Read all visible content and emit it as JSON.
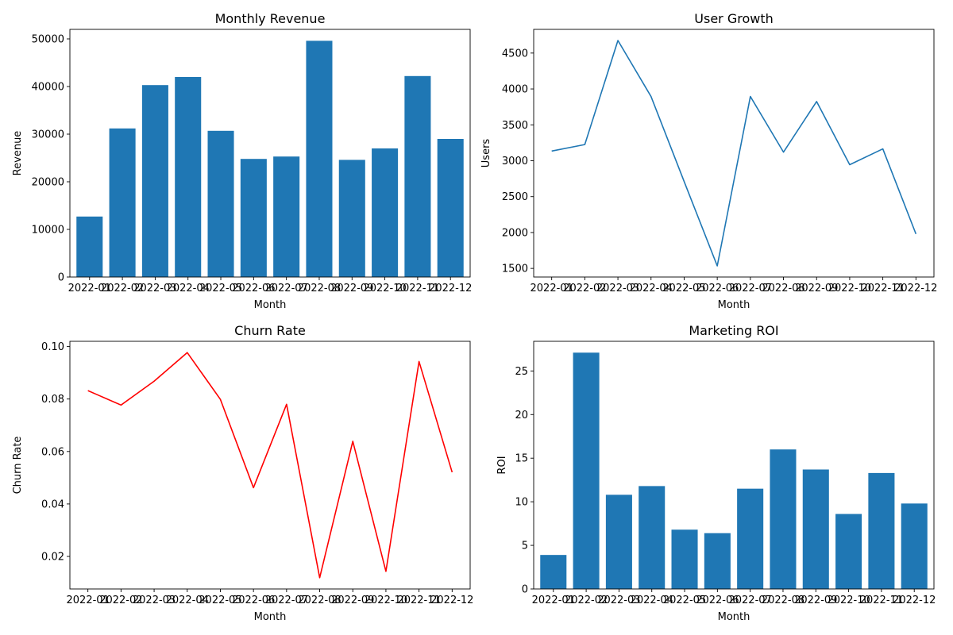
{
  "chart_data": [
    {
      "type": "bar",
      "title": "Monthly Revenue",
      "xlabel": "Month",
      "ylabel": "Revenue",
      "categories": [
        "2022-01",
        "2022-02",
        "2022-03",
        "2022-04",
        "2022-05",
        "2022-06",
        "2022-07",
        "2022-08",
        "2022-09",
        "2022-10",
        "2022-11",
        "2022-12"
      ],
      "values": [
        12700,
        31200,
        40300,
        42000,
        30700,
        24800,
        25300,
        49600,
        24600,
        27000,
        42200,
        29000
      ],
      "ylim": [
        0,
        52000
      ],
      "yticks": [
        0,
        10000,
        20000,
        30000,
        40000,
        50000
      ],
      "color": "#1f77b4",
      "grid": false
    },
    {
      "type": "line",
      "title": "User Growth",
      "xlabel": "Month",
      "ylabel": "Users",
      "categories": [
        "2022-01",
        "2022-02",
        "2022-03",
        "2022-04",
        "2022-05",
        "2022-06",
        "2022-07",
        "2022-08",
        "2022-09",
        "2022-10",
        "2022-11",
        "2022-12"
      ],
      "values": [
        3135,
        3225,
        4675,
        3895,
        2710,
        1535,
        3895,
        3120,
        3825,
        2945,
        3165,
        1980
      ],
      "ylim": [
        1380,
        4830
      ],
      "yticks": [
        1500,
        2000,
        2500,
        3000,
        3500,
        4000,
        4500
      ],
      "color": "#1f77b4",
      "grid": false
    },
    {
      "type": "line",
      "title": "Churn Rate",
      "xlabel": "Month",
      "ylabel": "Churn Rate",
      "categories": [
        "2022-01",
        "2022-02",
        "2022-03",
        "2022-04",
        "2022-05",
        "2022-06",
        "2022-07",
        "2022-08",
        "2022-09",
        "2022-10",
        "2022-11",
        "2022-12"
      ],
      "values": [
        0.0832,
        0.0777,
        0.0868,
        0.0977,
        0.0799,
        0.0462,
        0.078,
        0.0119,
        0.0639,
        0.0143,
        0.0943,
        0.0521
      ],
      "ylim": [
        0.0076,
        0.102
      ],
      "yticks": [
        0.02,
        0.04,
        0.06,
        0.08,
        0.1
      ],
      "ytick_labels": [
        "0.02",
        "0.04",
        "0.06",
        "0.08",
        "0.10"
      ],
      "color": "#ff0000",
      "grid": false
    },
    {
      "type": "bar",
      "title": "Marketing ROI",
      "xlabel": "Month",
      "ylabel": "ROI",
      "categories": [
        "2022-01",
        "2022-02",
        "2022-03",
        "2022-04",
        "2022-05",
        "2022-06",
        "2022-07",
        "2022-08",
        "2022-09",
        "2022-10",
        "2022-11",
        "2022-12"
      ],
      "values": [
        3.9,
        27.1,
        10.8,
        11.8,
        6.8,
        6.4,
        11.5,
        16.0,
        13.7,
        8.6,
        13.3,
        9.8
      ],
      "ylim": [
        0,
        28.4
      ],
      "yticks": [
        0,
        5,
        10,
        15,
        20,
        25
      ],
      "color": "#1f77b4",
      "grid": false
    }
  ]
}
